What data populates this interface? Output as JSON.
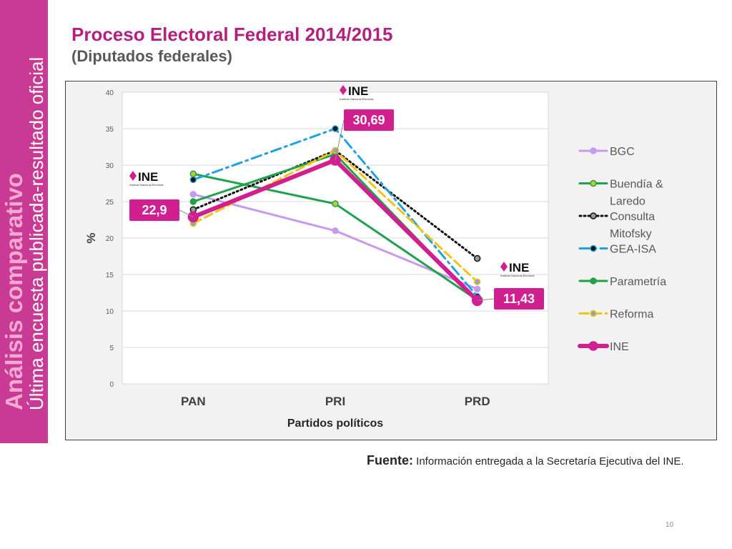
{
  "sidebar": {
    "title": "Análisis comparativo",
    "subtitle": "Última encuesta publicada-resultado oficial"
  },
  "header": {
    "title": "Proceso Electoral Federal 2014/2015",
    "subtitle": "(Diputados federales)"
  },
  "chart_data": {
    "type": "line",
    "xlabel": "Partidos políticos",
    "ylabel": "%",
    "ylim": [
      0,
      40
    ],
    "yticks": [
      0,
      5,
      10,
      15,
      20,
      25,
      30,
      35,
      40
    ],
    "grid": true,
    "legend_position": "right",
    "categories": [
      "PAN",
      "PRI",
      "PRD"
    ],
    "series": [
      {
        "name": "BGC",
        "values": [
          26,
          21,
          13
        ],
        "color": "#c79af0",
        "dash": "solid",
        "marker_fill": "#c79af0"
      },
      {
        "name": "Buendía & Laredo",
        "values": [
          28.8,
          24.7,
          11.5
        ],
        "color": "#1fa34a",
        "dash": "solid",
        "marker_fill": "#c3c930"
      },
      {
        "name": "Consulta Mitofsky",
        "values": [
          23.9,
          32,
          17.2
        ],
        "color": "#111111",
        "dash": "dotted",
        "marker_fill": "#9a9a9a"
      },
      {
        "name": "GEA-ISA",
        "values": [
          28,
          35,
          12
        ],
        "color": "#1fa3e0",
        "dash": "dashdot",
        "marker_fill": "#111111"
      },
      {
        "name": "Parametría",
        "values": [
          25,
          31.5,
          11.3
        ],
        "color": "#1fa34a",
        "dash": "solid",
        "marker_fill": "#1fa34a"
      },
      {
        "name": "Reforma",
        "values": [
          22,
          32,
          14
        ],
        "color": "#f5c216",
        "dash": "dash",
        "marker_fill": "#8fa6b8"
      },
      {
        "name": "INE",
        "values": [
          22.9,
          30.69,
          11.43
        ],
        "color": "#d21f8f",
        "dash": "solid",
        "marker_fill": "#d21f8f"
      }
    ],
    "annotations": [
      {
        "category": "PAN",
        "text": "22,9"
      },
      {
        "category": "PRI",
        "text": "30,69"
      },
      {
        "category": "PRD",
        "text": "11,43"
      }
    ],
    "logo_text": "INE",
    "logo_subtext": "Instituto Nacional Electoral"
  },
  "footer": {
    "source_label": "Fuente:",
    "source_text": "Información entregada a la Secretaría Ejecutiva del INE.",
    "page_number": "10"
  }
}
